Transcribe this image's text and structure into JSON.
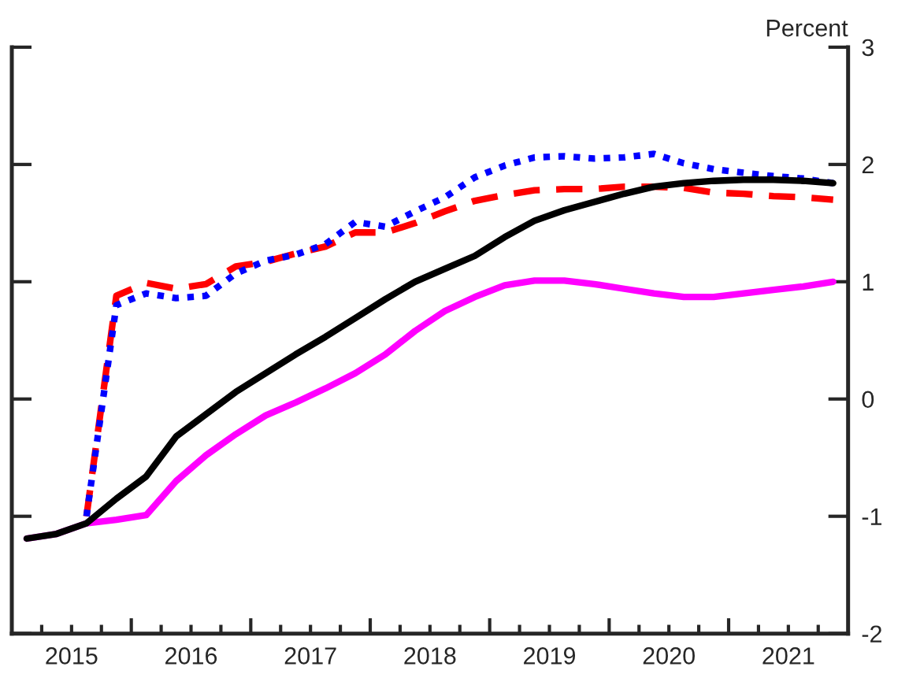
{
  "chart_data": {
    "type": "line",
    "ylabel": "Percent",
    "x": [
      2015.125,
      2015.375,
      2015.625,
      2015.875,
      2016.125,
      2016.375,
      2016.625,
      2016.875,
      2017.125,
      2017.375,
      2017.625,
      2017.875,
      2018.125,
      2018.375,
      2018.625,
      2018.875,
      2019.125,
      2019.375,
      2019.625,
      2019.875,
      2020.125,
      2020.375,
      2020.625,
      2020.875,
      2021.125,
      2021.375,
      2021.625,
      2021.875
    ],
    "series": [
      {
        "color": "#ff0000",
        "line_style": "dashed",
        "values": [
          null,
          null,
          -1.0,
          0.88,
          0.99,
          0.94,
          0.98,
          1.13,
          1.17,
          1.24,
          1.3,
          1.42,
          1.42,
          1.5,
          1.6,
          1.69,
          1.74,
          1.78,
          1.79,
          1.79,
          1.81,
          1.81,
          1.8,
          1.76,
          1.75,
          1.73,
          1.72,
          1.7
        ]
      },
      {
        "color": "#0000ff",
        "line_style": "dotted",
        "values": [
          null,
          null,
          -1.0,
          0.8,
          0.9,
          0.86,
          0.88,
          1.07,
          1.18,
          1.23,
          1.32,
          1.51,
          1.47,
          1.6,
          1.72,
          1.89,
          1.99,
          2.06,
          2.07,
          2.05,
          2.06,
          2.09,
          2.01,
          1.96,
          1.93,
          1.9,
          1.88,
          1.84
        ]
      },
      {
        "color": "#ff00ff",
        "line_style": "solid",
        "values": [
          -1.19,
          -1.15,
          -1.06,
          -1.03,
          -0.99,
          -0.7,
          -0.48,
          -0.3,
          -0.14,
          -0.03,
          0.09,
          0.22,
          0.38,
          0.58,
          0.75,
          0.87,
          0.97,
          1.01,
          1.01,
          0.98,
          0.94,
          0.9,
          0.87,
          0.87,
          0.9,
          0.93,
          0.96,
          1.0
        ]
      },
      {
        "color": "#000000",
        "line_style": "solid",
        "values": [
          -1.19,
          -1.15,
          -1.06,
          -0.85,
          -0.66,
          -0.32,
          -0.13,
          0.06,
          0.22,
          0.38,
          0.53,
          0.69,
          0.85,
          1.0,
          1.11,
          1.22,
          1.38,
          1.52,
          1.61,
          1.68,
          1.75,
          1.81,
          1.84,
          1.86,
          1.87,
          1.87,
          1.86,
          1.84
        ]
      }
    ],
    "xlim": [
      2015,
      2022
    ],
    "xticks": [
      {
        "value": 2015.25,
        "label": null
      },
      {
        "value": 2015.5,
        "label": "2015"
      },
      {
        "value": 2015.75,
        "label": null
      },
      {
        "value": 2016,
        "label": null
      },
      {
        "value": 2016.25,
        "label": null
      },
      {
        "value": 2016.5,
        "label": "2016"
      },
      {
        "value": 2016.75,
        "label": null
      },
      {
        "value": 2017,
        "label": null
      },
      {
        "value": 2017.25,
        "label": null
      },
      {
        "value": 2017.5,
        "label": "2017"
      },
      {
        "value": 2017.75,
        "label": null
      },
      {
        "value": 2018,
        "label": null
      },
      {
        "value": 2018.25,
        "label": null
      },
      {
        "value": 2018.5,
        "label": "2018"
      },
      {
        "value": 2018.75,
        "label": null
      },
      {
        "value": 2019,
        "label": null
      },
      {
        "value": 2019.25,
        "label": null
      },
      {
        "value": 2019.5,
        "label": "2019"
      },
      {
        "value": 2019.75,
        "label": null
      },
      {
        "value": 2020,
        "label": null
      },
      {
        "value": 2020.25,
        "label": null
      },
      {
        "value": 2020.5,
        "label": "2020"
      },
      {
        "value": 2020.75,
        "label": null
      },
      {
        "value": 2021,
        "label": null
      },
      {
        "value": 2021.25,
        "label": null
      },
      {
        "value": 2021.5,
        "label": "2021"
      },
      {
        "value": 2021.75,
        "label": null
      }
    ],
    "ylim": [
      -2,
      3
    ],
    "yticks": [
      -2,
      -1,
      0,
      1,
      2,
      3
    ],
    "grid": false,
    "legend": false
  }
}
